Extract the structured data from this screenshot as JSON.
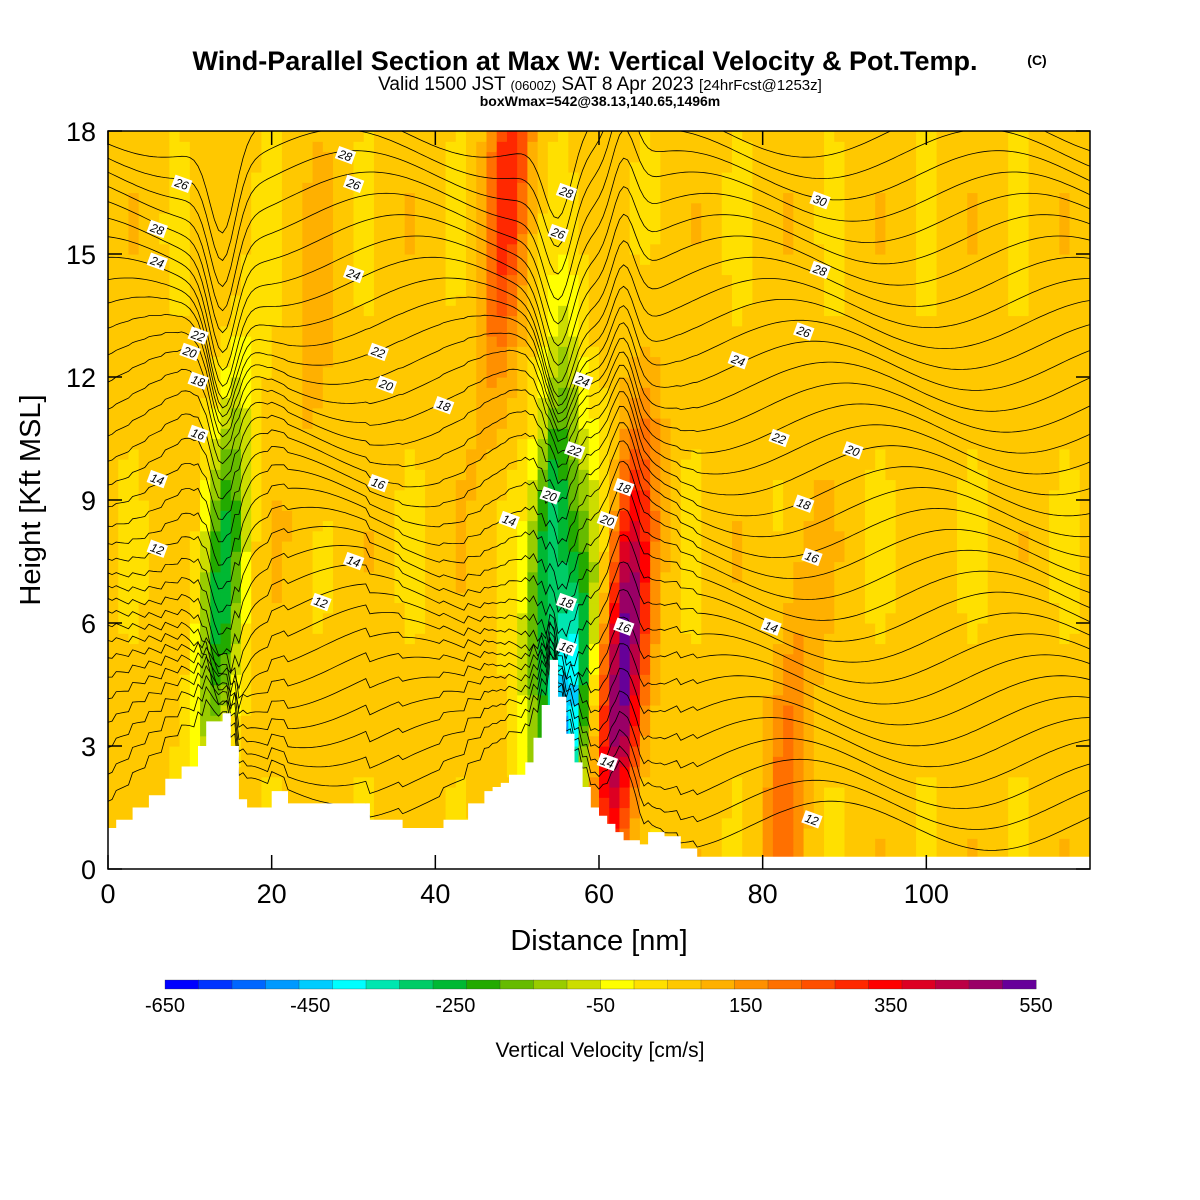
{
  "titles": {
    "main": "Wind-Parallel Section at Max W: Vertical Velocity & Pot.Temp.",
    "copyright": "(C)",
    "valid_a": "Valid 1500 JST",
    "valid_z": "(0600Z)",
    "valid_b": "SAT 8 Apr 2023",
    "forecast": "[24hrFcst@1253z]",
    "box": "boxWmax=542@38.13,140.65,1496m"
  },
  "chart_data": {
    "type": "heatmap",
    "xlabel": "Distance [nm]",
    "ylabel": "Height [Kft MSL]",
    "xlim": [
      0,
      120
    ],
    "ylim": [
      0,
      18
    ],
    "x_ticks": [
      0,
      20,
      40,
      60,
      80,
      100
    ],
    "y_ticks": [
      0,
      3,
      6,
      9,
      12,
      15,
      18
    ],
    "x_tick_labels": [
      "0",
      "20",
      "40",
      "60",
      "80",
      "100"
    ],
    "y_tick_labels": [
      "0",
      "3",
      "6",
      "9",
      "12",
      "15",
      "18"
    ],
    "colorbar": {
      "label": "Vertical Velocity [cm/s]",
      "min": -650,
      "max": 550,
      "step": 50,
      "tick_labels": [
        "-650",
        "-450",
        "-250",
        "-50",
        "150",
        "350",
        "550"
      ],
      "colors": [
        "#0000ff",
        "#0033ff",
        "#0066ff",
        "#0099ff",
        "#00ccff",
        "#00ffff",
        "#00e6b0",
        "#00cc66",
        "#00b833",
        "#22aa00",
        "#66bb00",
        "#99cc00",
        "#ccdd00",
        "#ffff00",
        "#ffe000",
        "#ffc800",
        "#ffb000",
        "#ff9000",
        "#ff7000",
        "#ff5000",
        "#ff2800",
        "#ff0000",
        "#dd0022",
        "#bb0044",
        "#990066",
        "#660099"
      ]
    },
    "w_features": [
      {
        "x": 14,
        "z": 7,
        "w": -250
      },
      {
        "x": 54,
        "z": 8,
        "w": -300
      },
      {
        "x": 56,
        "z": 3.3,
        "w": -450
      },
      {
        "x": 63,
        "z": 5,
        "w": 542
      },
      {
        "x": 49,
        "z": 17,
        "w": 300
      },
      {
        "x": 83,
        "z": 2.5,
        "w": 200
      },
      {
        "x": 25,
        "z": 12,
        "w": 100
      }
    ],
    "terrain_profile": {
      "x": [
        0,
        1,
        3,
        5,
        7,
        9,
        11,
        12,
        14,
        15,
        16,
        17,
        20,
        22,
        25,
        29,
        32,
        36,
        39,
        41,
        44,
        46,
        47,
        48,
        49,
        51,
        52,
        53,
        54,
        55,
        56,
        57,
        58,
        59,
        60,
        61,
        62,
        63,
        65,
        66,
        68,
        70,
        72,
        80,
        90,
        100,
        110,
        120
      ],
      "z": [
        1.0,
        1.2,
        1.5,
        1.8,
        2.2,
        2.5,
        3.0,
        3.6,
        3.8,
        3.0,
        1.7,
        1.5,
        1.9,
        1.6,
        1.6,
        1.6,
        1.2,
        1.0,
        1.0,
        1.2,
        1.6,
        1.9,
        2.0,
        2.1,
        2.3,
        2.6,
        3.2,
        4.0,
        5.1,
        4.2,
        3.3,
        2.6,
        2.0,
        1.5,
        1.3,
        1.1,
        0.9,
        0.7,
        0.6,
        0.9,
        0.8,
        0.5,
        0.3,
        0.3,
        0.3,
        0.3,
        0.3,
        0.3
      ]
    },
    "contour_labels": [
      {
        "x": 6,
        "z": 15.6,
        "text": "28"
      },
      {
        "x": 29,
        "z": 17.4,
        "text": "28"
      },
      {
        "x": 30,
        "z": 16.7,
        "text": "26"
      },
      {
        "x": 9,
        "z": 16.7,
        "text": "26"
      },
      {
        "x": 6,
        "z": 14.8,
        "text": "24"
      },
      {
        "x": 30,
        "z": 14.5,
        "text": "24"
      },
      {
        "x": 11,
        "z": 13.0,
        "text": "22"
      },
      {
        "x": 33,
        "z": 12.6,
        "text": "22"
      },
      {
        "x": 10,
        "z": 12.6,
        "text": "20"
      },
      {
        "x": 34,
        "z": 11.8,
        "text": "20"
      },
      {
        "x": 11,
        "z": 11.9,
        "text": "18"
      },
      {
        "x": 41,
        "z": 11.3,
        "text": "18"
      },
      {
        "x": 11,
        "z": 10.6,
        "text": "16"
      },
      {
        "x": 33,
        "z": 9.4,
        "text": "16"
      },
      {
        "x": 6,
        "z": 9.5,
        "text": "14"
      },
      {
        "x": 30,
        "z": 7.5,
        "text": "14"
      },
      {
        "x": 6,
        "z": 7.8,
        "text": "12"
      },
      {
        "x": 26,
        "z": 6.5,
        "text": "12"
      },
      {
        "x": 56,
        "z": 16.5,
        "text": "28"
      },
      {
        "x": 55,
        "z": 15.5,
        "text": "26"
      },
      {
        "x": 58,
        "z": 11.9,
        "text": "24"
      },
      {
        "x": 57,
        "z": 10.2,
        "text": "22"
      },
      {
        "x": 54,
        "z": 9.1,
        "text": "20"
      },
      {
        "x": 49,
        "z": 8.5,
        "text": "14"
      },
      {
        "x": 56,
        "z": 6.5,
        "text": "18"
      },
      {
        "x": 56,
        "z": 5.4,
        "text": "16"
      },
      {
        "x": 61,
        "z": 8.5,
        "text": "20"
      },
      {
        "x": 63,
        "z": 9.3,
        "text": "18"
      },
      {
        "x": 63,
        "z": 5.9,
        "text": "16"
      },
      {
        "x": 61,
        "z": 2.6,
        "text": "14"
      },
      {
        "x": 87,
        "z": 16.3,
        "text": "30"
      },
      {
        "x": 87,
        "z": 14.6,
        "text": "28"
      },
      {
        "x": 85,
        "z": 13.1,
        "text": "26"
      },
      {
        "x": 77,
        "z": 12.4,
        "text": "24"
      },
      {
        "x": 82,
        "z": 10.5,
        "text": "22"
      },
      {
        "x": 91,
        "z": 10.2,
        "text": "20"
      },
      {
        "x": 85,
        "z": 8.9,
        "text": "18"
      },
      {
        "x": 86,
        "z": 7.6,
        "text": "16"
      },
      {
        "x": 81,
        "z": 5.9,
        "text": "14"
      },
      {
        "x": 86,
        "z": 1.2,
        "text": "12"
      }
    ]
  }
}
